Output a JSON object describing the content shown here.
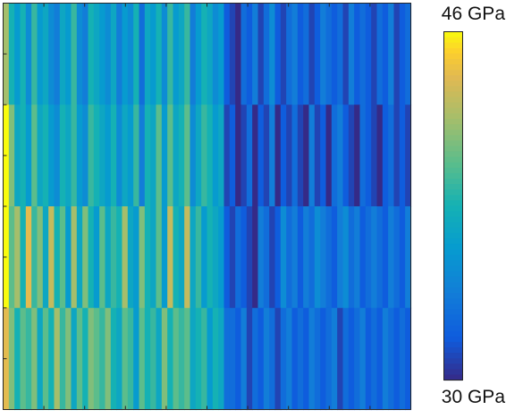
{
  "chart_data": {
    "type": "heatmap",
    "title": "",
    "xlabel": "",
    "ylabel": "",
    "colormap": "parula",
    "clim": [
      30,
      46
    ],
    "colorbar": {
      "position": "right",
      "max_label": "46 GPa",
      "min_label": "30 GPa",
      "unit": "GPa"
    },
    "grid": false,
    "rows": [
      [
        42,
        38,
        36,
        38,
        35,
        39,
        36,
        37,
        35,
        34,
        37,
        36,
        39,
        35,
        34,
        38,
        37,
        36,
        35,
        37,
        34,
        36,
        35,
        38,
        33,
        37,
        36,
        38,
        35,
        39,
        36,
        37,
        39,
        34,
        36,
        38,
        37,
        35,
        36,
        32,
        31,
        30,
        33,
        32,
        34,
        31,
        33,
        35,
        32,
        31,
        33,
        34,
        32,
        33,
        31,
        32,
        34,
        33,
        32,
        33,
        31,
        34,
        32,
        33,
        32,
        31,
        33,
        32,
        34,
        31,
        32,
        33
      ],
      [
        46,
        41,
        37,
        38,
        36,
        40,
        37,
        38,
        36,
        35,
        38,
        37,
        39,
        36,
        35,
        39,
        38,
        37,
        36,
        38,
        35,
        37,
        36,
        39,
        34,
        38,
        37,
        40,
        36,
        40,
        37,
        38,
        40,
        35,
        37,
        39,
        38,
        36,
        37,
        31,
        32,
        30,
        31,
        33,
        30,
        32,
        31,
        34,
        30,
        32,
        31,
        33,
        31,
        30,
        34,
        31,
        32,
        30,
        33,
        34,
        32,
        31,
        30,
        33,
        32,
        31,
        30,
        32,
        33,
        31,
        32,
        31
      ],
      [
        46,
        40,
        42,
        38,
        44,
        39,
        41,
        37,
        43,
        38,
        40,
        36,
        42,
        37,
        41,
        38,
        36,
        40,
        37,
        39,
        38,
        42,
        37,
        36,
        41,
        38,
        37,
        40,
        36,
        43,
        38,
        37,
        43,
        37,
        39,
        36,
        38,
        37,
        36,
        32,
        31,
        33,
        32,
        31,
        30,
        34,
        33,
        31,
        32,
        35,
        33,
        34,
        32,
        34,
        33,
        35,
        34,
        33,
        32,
        34,
        35,
        33,
        34,
        32,
        33,
        34,
        33,
        32,
        34,
        33,
        32,
        34
      ],
      [
        44,
        41,
        38,
        40,
        39,
        41,
        37,
        40,
        38,
        42,
        39,
        41,
        37,
        40,
        38,
        41,
        40,
        39,
        41,
        38,
        37,
        40,
        39,
        36,
        40,
        38,
        39,
        37,
        41,
        38,
        40,
        39,
        40,
        37,
        38,
        39,
        36,
        38,
        37,
        33,
        33,
        32,
        34,
        31,
        33,
        32,
        34,
        33,
        31,
        33,
        34,
        32,
        33,
        32,
        34,
        33,
        32,
        33,
        34,
        31,
        33,
        32,
        33,
        34,
        32,
        33,
        32,
        34,
        33,
        32,
        33,
        32
      ]
    ]
  }
}
